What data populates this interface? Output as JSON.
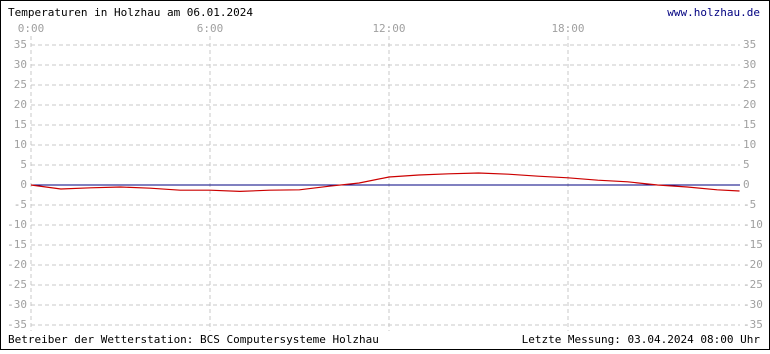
{
  "chart_data": {
    "type": "line",
    "title": "Temperaturen in Holzhau am 06.01.2024",
    "link": "www.holzhau.de",
    "footer_left": "Betreiber der Wetterstation: BCS Computersysteme Holzhau",
    "footer_right": "Letzte Messung: 03.04.2024 08:00 Uhr",
    "x": [
      0,
      1,
      2,
      3,
      4,
      5,
      6,
      7,
      8,
      9,
      10,
      11,
      12,
      13,
      14,
      15,
      16,
      17,
      18,
      19,
      20,
      21,
      22,
      23,
      23.75
    ],
    "series": [
      {
        "color": "#cc0000",
        "values": [
          0,
          -1,
          -0.7,
          -0.5,
          -0.8,
          -1.3,
          -1.3,
          -1.6,
          -1.3,
          -1.2,
          -0.3,
          0.5,
          2,
          2.5,
          2.8,
          3,
          2.7,
          2.2,
          1.8,
          1.2,
          0.8,
          0,
          -0.5,
          -1.2,
          -1.5
        ]
      }
    ],
    "zero_line_color": "#000080",
    "xlim": [
      0,
      24
    ],
    "xticks": [
      {
        "value": 0,
        "label": "0:00"
      },
      {
        "value": 6,
        "label": "6:00"
      },
      {
        "value": 12,
        "label": "12:00"
      },
      {
        "value": 18,
        "label": "18:00"
      }
    ],
    "ylim": [
      -35,
      35
    ],
    "yticks": [
      35,
      30,
      25,
      20,
      15,
      10,
      5,
      0,
      -5,
      -10,
      -15,
      -20,
      -25,
      -30,
      -35
    ],
    "grid": true
  }
}
